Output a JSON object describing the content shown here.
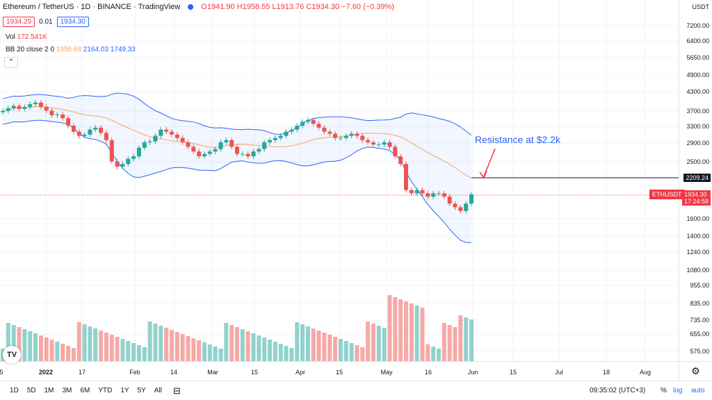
{
  "header": {
    "symbol": "Ethereum / TetherUS · 1D · BINANCE · TradingView",
    "ohlc": "O1941.90 H1958.55 L1913.76 C1934.30 −7.60 (−0.39%)"
  },
  "quote": {
    "bid": "1934.29",
    "spread": "0.01",
    "ask": "1934.30"
  },
  "vol": {
    "label": "Vol",
    "value": "172.541K"
  },
  "bb": {
    "label": "BB 20 close 2 0",
    "basis": "1956.68",
    "upper": "2164.03",
    "lower": "1749.33"
  },
  "collapse_icon": "chevron-up",
  "annotation": "Resistance at $2.2k",
  "currency": "USDT",
  "y_ticks": [
    "7200.00",
    "6400.00",
    "5650.00",
    "4900.00",
    "4300.00",
    "3700.00",
    "3300.00",
    "2900.00",
    "2500.00",
    "1600.00",
    "1400.00",
    "1240.00",
    "1080.00",
    "955.00",
    "835.00",
    "735.00",
    "655.00",
    "575.00"
  ],
  "resistance_label": "2209.24",
  "price_label": "1934.30",
  "countdown": "17:24:58",
  "pair_tag": "ETHUSDT",
  "x_ticks": [
    "2022",
    "17",
    "Feb",
    "14",
    "Mar",
    "15",
    "Apr",
    "15",
    "May",
    "16",
    "Jun",
    "15",
    "Jul",
    "18",
    "Aug"
  ],
  "x_tick_partial": "5",
  "ranges": [
    "1D",
    "5D",
    "1M",
    "3M",
    "6M",
    "YTD",
    "1Y",
    "5Y",
    "All"
  ],
  "time": "09:35:02 (UTC+3)",
  "opts": {
    "pct": "%",
    "log": "log",
    "auto": "auto"
  },
  "colors": {
    "up": "#26a69a",
    "down": "#ef5350",
    "band": "#2962ff",
    "basis": "#f7a35c",
    "annot": "#2962ff"
  },
  "chart_data": {
    "type": "candlestick",
    "series_closes": [
      3700,
      3780,
      3850,
      3760,
      3820,
      3900,
      3950,
      3820,
      3710,
      3580,
      3600,
      3500,
      3300,
      3150,
      3050,
      3080,
      3200,
      3250,
      3120,
      2950,
      2500,
      2400,
      2450,
      2550,
      2600,
      2780,
      2900,
      2920,
      3050,
      3200,
      3150,
      3080,
      3000,
      2900,
      2800,
      2700,
      2600,
      2650,
      2700,
      2750,
      2900,
      2950,
      2800,
      2650,
      2650,
      2600,
      2700,
      2750,
      2900,
      2950,
      3000,
      3050,
      3150,
      3200,
      3300,
      3400,
      3450,
      3350,
      3250,
      3150,
      3100,
      3000,
      3000,
      3050,
      3100,
      3050,
      2950,
      2900,
      2850,
      2850,
      2900,
      2800,
      2600,
      2450,
      2000,
      1950,
      2000,
      1950,
      1900,
      1950,
      1950,
      1900,
      1800,
      1750,
      1700,
      1800,
      1934
    ]
  }
}
